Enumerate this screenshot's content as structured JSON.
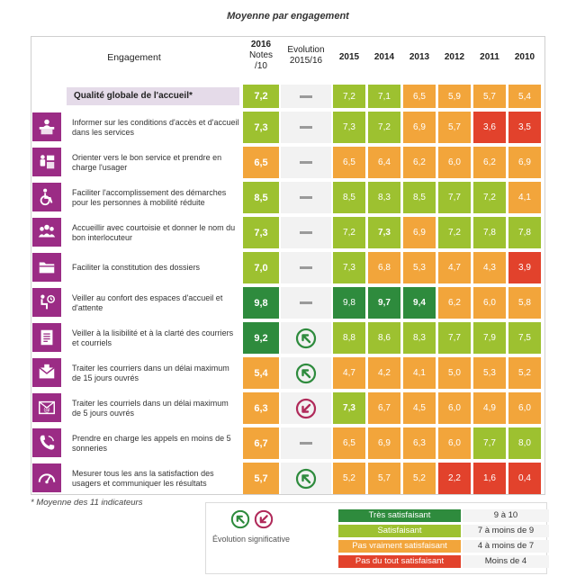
{
  "title": "Moyenne par engagement",
  "colors": {
    "very_satisfying": "#2e8b3d",
    "satisfying": "#9dc130",
    "not_really": "#f2a53b",
    "not_at_all": "#e2422c",
    "icon_bg": "#9b2c85",
    "arrow_up": "#2e8b3d",
    "arrow_down": "#b02a5a"
  },
  "headers": {
    "engagement": "Engagement",
    "notes_line1": "2016",
    "notes_line2": "Notes",
    "notes_line3": "/10",
    "evo_line1": "Evolution",
    "evo_line2": "2015/16",
    "years": [
      "2015",
      "2014",
      "2013",
      "2012",
      "2011",
      "2010"
    ]
  },
  "global_row": {
    "label": "Qualité globale de l'accueil*",
    "note": "7,2",
    "note_level": "satisfying",
    "evolution": "none",
    "years": [
      {
        "v": "7,2",
        "c": "satisfying"
      },
      {
        "v": "7,1",
        "c": "satisfying"
      },
      {
        "v": "6,5",
        "c": "not_really"
      },
      {
        "v": "5,9",
        "c": "not_really"
      },
      {
        "v": "5,7",
        "c": "not_really"
      },
      {
        "v": "5,4",
        "c": "not_really"
      }
    ]
  },
  "rows": [
    {
      "icon": "reception-desk-icon",
      "label": "Informer sur les conditions d'accès et d'accueil dans les services",
      "note": "7,3",
      "note_level": "satisfying",
      "evolution": "none",
      "years": [
        {
          "v": "7,3",
          "c": "satisfying"
        },
        {
          "v": "7,2",
          "c": "satisfying"
        },
        {
          "v": "6,9",
          "c": "not_really"
        },
        {
          "v": "5,7",
          "c": "not_really"
        },
        {
          "v": "3,6",
          "c": "not_at_all"
        },
        {
          "v": "3,5",
          "c": "not_at_all"
        }
      ]
    },
    {
      "icon": "orientation-icon",
      "label": "Orienter vers le bon service et prendre en charge l'usager",
      "note": "6,5",
      "note_level": "not_really",
      "evolution": "none",
      "years": [
        {
          "v": "6,5",
          "c": "not_really"
        },
        {
          "v": "6,4",
          "c": "not_really"
        },
        {
          "v": "6,2",
          "c": "not_really"
        },
        {
          "v": "6,0",
          "c": "not_really"
        },
        {
          "v": "6,2",
          "c": "not_really"
        },
        {
          "v": "6,9",
          "c": "not_really"
        }
      ]
    },
    {
      "icon": "wheelchair-icon",
      "label": "Faciliter l'accomplissement des démarches pour les personnes à mobilité réduite",
      "note": "8,5",
      "note_level": "satisfying",
      "evolution": "none",
      "years": [
        {
          "v": "8,5",
          "c": "satisfying"
        },
        {
          "v": "8,3",
          "c": "satisfying"
        },
        {
          "v": "8,5",
          "c": "satisfying"
        },
        {
          "v": "7,7",
          "c": "satisfying"
        },
        {
          "v": "7,2",
          "c": "satisfying"
        },
        {
          "v": "4,1",
          "c": "not_really"
        }
      ]
    },
    {
      "icon": "people-icon",
      "label": "Accueillir avec courtoisie et donner le nom du bon interlocuteur",
      "note": "7,3",
      "note_level": "satisfying",
      "evolution": "none",
      "years": [
        {
          "v": "7,2",
          "c": "satisfying"
        },
        {
          "v": "7,3",
          "c": "satisfying",
          "b": true
        },
        {
          "v": "6,9",
          "c": "not_really"
        },
        {
          "v": "7,2",
          "c": "satisfying"
        },
        {
          "v": "7,8",
          "c": "satisfying"
        },
        {
          "v": "7,8",
          "c": "satisfying"
        }
      ]
    },
    {
      "icon": "folder-icon",
      "label": "Faciliter la constitution des dossiers",
      "note": "7,0",
      "note_level": "satisfying",
      "evolution": "none",
      "years": [
        {
          "v": "7,3",
          "c": "satisfying"
        },
        {
          "v": "6,8",
          "c": "not_really"
        },
        {
          "v": "5,3",
          "c": "not_really"
        },
        {
          "v": "4,7",
          "c": "not_really"
        },
        {
          "v": "4,3",
          "c": "not_really"
        },
        {
          "v": "3,9",
          "c": "not_at_all"
        }
      ]
    },
    {
      "icon": "waiting-room-icon",
      "label": "Veiller au confort des espaces d'accueil et d'attente",
      "note": "9,8",
      "note_level": "very_satisfying",
      "evolution": "none",
      "years": [
        {
          "v": "9,8",
          "c": "very_satisfying"
        },
        {
          "v": "9,7",
          "c": "very_satisfying",
          "b": true
        },
        {
          "v": "9,4",
          "c": "very_satisfying",
          "b": true
        },
        {
          "v": "6,2",
          "c": "not_really"
        },
        {
          "v": "6,0",
          "c": "not_really"
        },
        {
          "v": "5,8",
          "c": "not_really"
        }
      ]
    },
    {
      "icon": "document-icon",
      "label": "Veiller à la lisibilité et à la clarté des courriers et courriels",
      "note": "9,2",
      "note_level": "very_satisfying",
      "evolution": "up",
      "years": [
        {
          "v": "8,8",
          "c": "satisfying"
        },
        {
          "v": "8,6",
          "c": "satisfying"
        },
        {
          "v": "8,3",
          "c": "satisfying"
        },
        {
          "v": "7,7",
          "c": "satisfying"
        },
        {
          "v": "7,9",
          "c": "satisfying"
        },
        {
          "v": "7,5",
          "c": "satisfying"
        }
      ]
    },
    {
      "icon": "mail-icon",
      "label": "Traiter les courriers dans un délai maximum de 15 jours ouvrés",
      "note": "5,4",
      "note_level": "not_really",
      "evolution": "up",
      "years": [
        {
          "v": "4,7",
          "c": "not_really"
        },
        {
          "v": "4,2",
          "c": "not_really"
        },
        {
          "v": "4,1",
          "c": "not_really"
        },
        {
          "v": "5,0",
          "c": "not_really"
        },
        {
          "v": "5,3",
          "c": "not_really"
        },
        {
          "v": "5,2",
          "c": "not_really"
        }
      ]
    },
    {
      "icon": "email-icon",
      "label": "Traiter les courriels dans un délai maximum de 5 jours ouvrés",
      "note": "6,3",
      "note_level": "not_really",
      "evolution": "down",
      "years": [
        {
          "v": "7,3",
          "c": "satisfying",
          "b": true
        },
        {
          "v": "6,7",
          "c": "not_really"
        },
        {
          "v": "4,5",
          "c": "not_really"
        },
        {
          "v": "6,0",
          "c": "not_really"
        },
        {
          "v": "4,9",
          "c": "not_really"
        },
        {
          "v": "6,0",
          "c": "not_really"
        }
      ]
    },
    {
      "icon": "phone-icon",
      "label": "Prendre en charge les appels en moins de 5 sonneries",
      "note": "6,7",
      "note_level": "not_really",
      "evolution": "none",
      "years": [
        {
          "v": "6,5",
          "c": "not_really"
        },
        {
          "v": "6,9",
          "c": "not_really"
        },
        {
          "v": "6,3",
          "c": "not_really"
        },
        {
          "v": "6,0",
          "c": "not_really"
        },
        {
          "v": "7,7",
          "c": "satisfying"
        },
        {
          "v": "8,0",
          "c": "satisfying"
        }
      ]
    },
    {
      "icon": "gauge-icon",
      "label": "Mesurer tous les ans la satisfaction des usagers et communiquer les résultats",
      "note": "5,7",
      "note_level": "not_really",
      "evolution": "up",
      "years": [
        {
          "v": "5,2",
          "c": "not_really"
        },
        {
          "v": "5,7",
          "c": "not_really"
        },
        {
          "v": "5,2",
          "c": "not_really"
        },
        {
          "v": "2,2",
          "c": "not_at_all"
        },
        {
          "v": "1,6",
          "c": "not_at_all"
        },
        {
          "v": "0,4",
          "c": "not_at_all"
        }
      ]
    }
  ],
  "footnote": "* Moyenne des 11 indicateurs",
  "legend": {
    "evolution_label": "Évolution significative",
    "items": [
      {
        "label": "Très satisfaisant",
        "range": "9 à 10",
        "c": "very_satisfying"
      },
      {
        "label": "Satisfaisant",
        "range": "7 à moins de 9",
        "c": "satisfying"
      },
      {
        "label": "Pas vraiment satisfaisant",
        "range": "4 à moins de 7",
        "c": "not_really"
      },
      {
        "label": "Pas du tout satisfaisant",
        "range": "Moins de 4",
        "c": "not_at_all"
      }
    ]
  }
}
